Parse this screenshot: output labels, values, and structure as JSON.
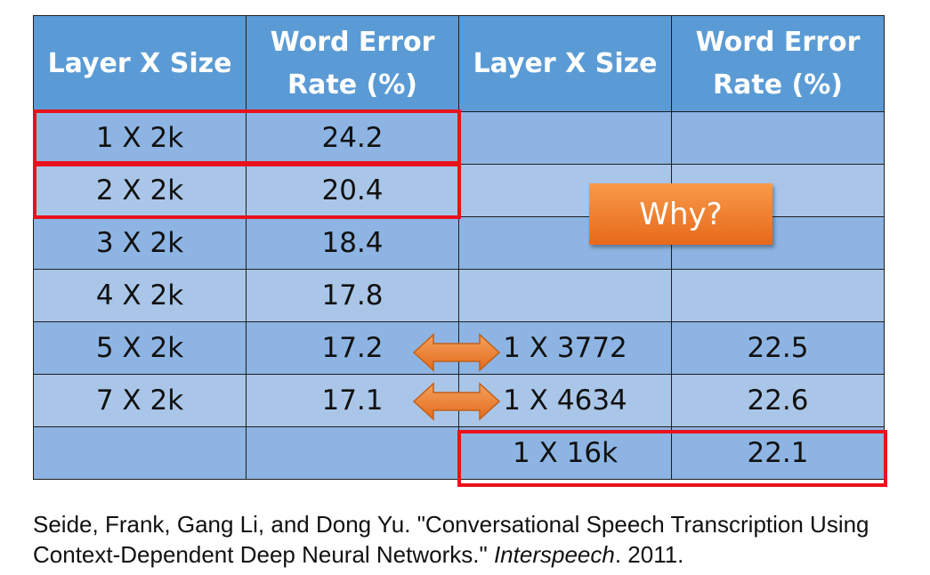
{
  "table": {
    "headers": [
      "Layer X Size",
      "Word Error Rate (%)",
      "Layer X Size",
      "Word Error Rate (%)"
    ],
    "rows": [
      [
        "1 X 2k",
        "24.2",
        "",
        ""
      ],
      [
        "2 X 2k",
        "20.4",
        "",
        ""
      ],
      [
        "3 X 2k",
        "18.4",
        "",
        ""
      ],
      [
        "4 X 2k",
        "17.8",
        "",
        ""
      ],
      [
        "5 X 2k",
        "17.2",
        "1 X 3772",
        "22.5"
      ],
      [
        "7 X 2k",
        "17.1",
        "1 X 4634",
        "22.6"
      ],
      [
        "",
        "",
        "1 X 16k",
        "22.1"
      ]
    ]
  },
  "callout": {
    "label": "Why?"
  },
  "citation": {
    "prefix": "Seide, Frank, Gang Li, and Dong Yu. \"Conversational Speech Transcription Using Context-Dependent Deep Neural Networks.\"",
    "venue": "Interspeech",
    "suffix": ". 2011."
  },
  "colors": {
    "header": "#5b9bd5",
    "row_dark": "#8db4e2",
    "row_light": "#a9c6e8",
    "highlight": "#e8121c",
    "callout": "#ed7d31"
  }
}
